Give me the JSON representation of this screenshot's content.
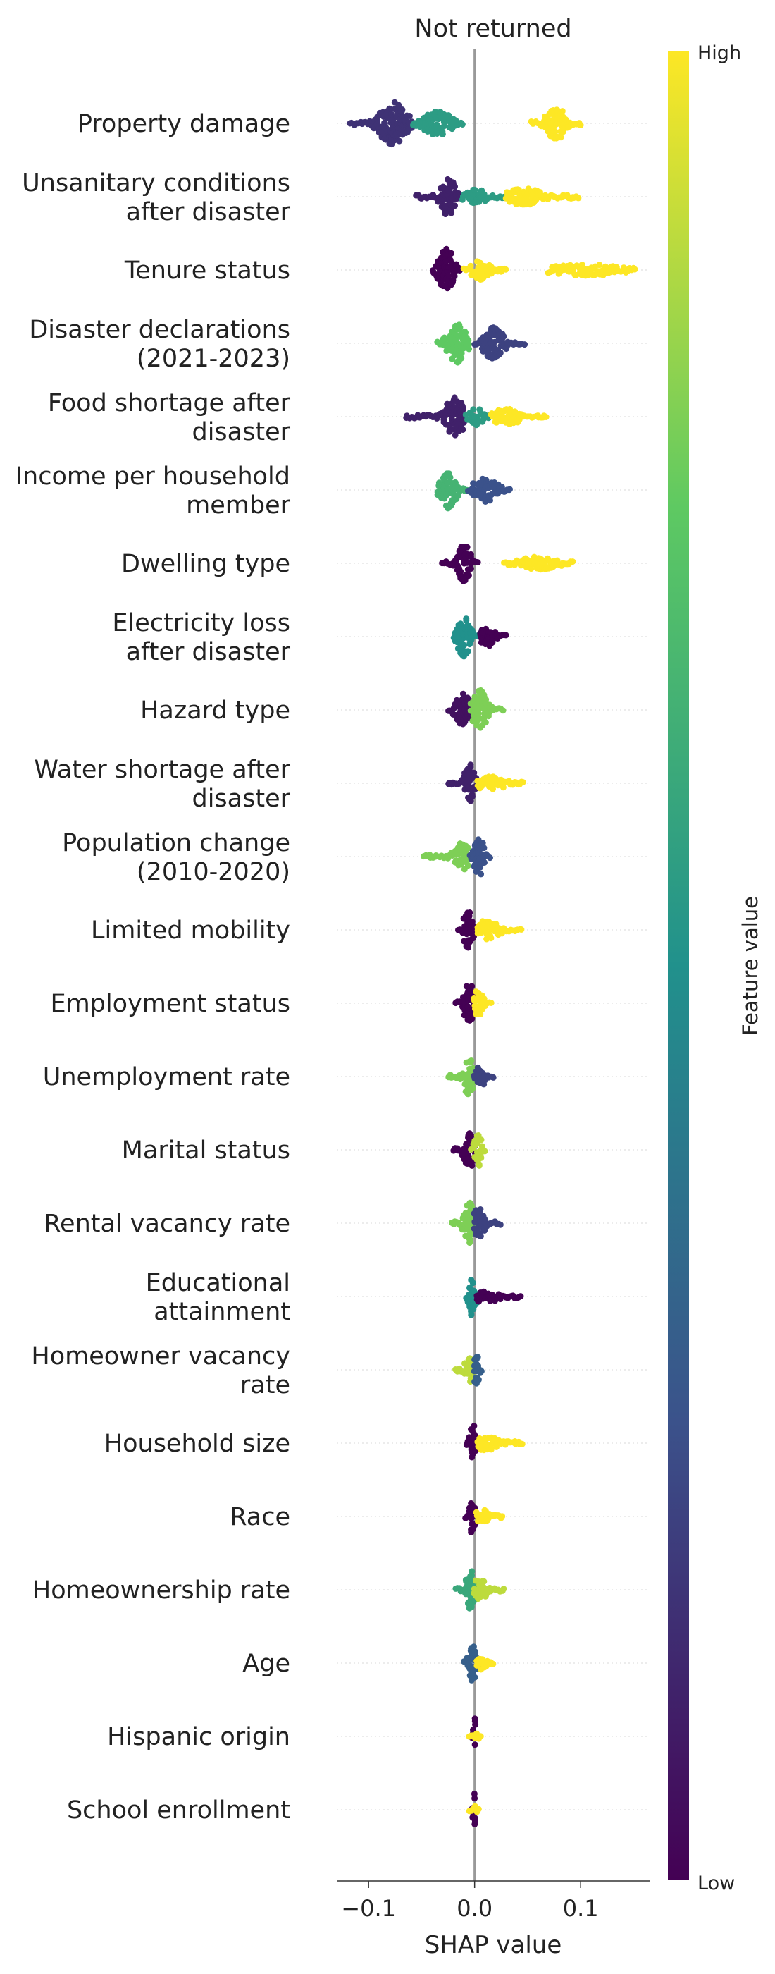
{
  "chart_data": {
    "type": "scatter",
    "subtype": "shap-beeswarm",
    "title": "Not returned",
    "xlabel": "SHAP value",
    "xlim": [
      -0.13,
      0.165
    ],
    "xticks": [
      -0.1,
      0.0,
      0.1
    ],
    "xtick_labels": [
      "−0.1",
      "0.0",
      "0.1"
    ],
    "grid": false,
    "zero_line": true,
    "colorbar": {
      "title": "Feature value",
      "high_label": "High",
      "low_label": "Low",
      "colormap": "viridis",
      "colors": [
        "#440154",
        "#3b528b",
        "#21918c",
        "#5ec962",
        "#fde725"
      ]
    },
    "features": [
      {
        "name": "Property damage",
        "label_lines": [
          "Property damage"
        ],
        "groups": [
          {
            "lo": -0.118,
            "hi": -0.058,
            "color_level": 0.15,
            "peak": -0.077,
            "width": 0.011,
            "height": 0.9
          },
          {
            "lo": -0.058,
            "hi": -0.011,
            "color_level": 0.55,
            "peak": -0.035,
            "width": 0.012,
            "height": 0.5
          },
          {
            "lo": 0.053,
            "hi": 0.101,
            "color_level": 1.0,
            "peak": 0.077,
            "width": 0.008,
            "height": 0.7
          }
        ]
      },
      {
        "name": "Unsanitary conditions after disaster",
        "label_lines": [
          "Unsanitary conditions",
          "after disaster"
        ],
        "groups": [
          {
            "lo": -0.055,
            "hi": -0.012,
            "color_level": 0.1,
            "peak": -0.025,
            "width": 0.006,
            "height": 0.8
          },
          {
            "lo": -0.012,
            "hi": 0.028,
            "color_level": 0.55,
            "peak": 0.0,
            "width": 0.009,
            "height": 0.35
          },
          {
            "lo": 0.03,
            "hi": 0.098,
            "color_level": 1.0,
            "peak": 0.047,
            "width": 0.016,
            "height": 0.35
          }
        ]
      },
      {
        "name": "Tenure status",
        "label_lines": [
          "Tenure status"
        ],
        "groups": [
          {
            "lo": -0.04,
            "hi": -0.014,
            "color_level": 0.0,
            "peak": -0.027,
            "width": 0.006,
            "height": 0.9
          },
          {
            "lo": -0.01,
            "hi": 0.03,
            "color_level": 1.0,
            "peak": 0.005,
            "width": 0.008,
            "height": 0.4
          },
          {
            "lo": 0.07,
            "hi": 0.152,
            "color_level": 1.0,
            "peak": 0.105,
            "width": 0.03,
            "height": 0.25
          }
        ]
      },
      {
        "name": "Disaster declarations (2021-2023)",
        "label_lines": [
          "Disaster declarations",
          "(2021-2023)"
        ],
        "groups": [
          {
            "lo": -0.035,
            "hi": -0.004,
            "color_level": 0.75,
            "peak": -0.016,
            "width": 0.008,
            "height": 0.8
          },
          {
            "lo": 0.0,
            "hi": 0.048,
            "color_level": 0.2,
            "peak": 0.018,
            "width": 0.008,
            "height": 0.7
          }
        ]
      },
      {
        "name": "Food shortage after disaster",
        "label_lines": [
          "Food shortage after",
          "disaster"
        ],
        "groups": [
          {
            "lo": -0.065,
            "hi": -0.008,
            "color_level": 0.1,
            "peak": -0.018,
            "width": 0.008,
            "height": 0.8
          },
          {
            "lo": -0.008,
            "hi": 0.015,
            "color_level": 0.55,
            "peak": 0.002,
            "width": 0.006,
            "height": 0.35
          },
          {
            "lo": 0.016,
            "hi": 0.068,
            "color_level": 1.0,
            "peak": 0.03,
            "width": 0.012,
            "height": 0.35
          }
        ]
      },
      {
        "name": "Income per household member",
        "label_lines": [
          "Income per household",
          "member"
        ],
        "groups": [
          {
            "lo": -0.035,
            "hi": -0.006,
            "color_level": 0.65,
            "peak": -0.025,
            "width": 0.006,
            "height": 0.8
          },
          {
            "lo": -0.006,
            "hi": 0.035,
            "color_level": 0.25,
            "peak": 0.01,
            "width": 0.01,
            "height": 0.5
          }
        ]
      },
      {
        "name": "Dwelling type",
        "label_lines": [
          "Dwelling type"
        ],
        "groups": [
          {
            "lo": -0.03,
            "hi": 0.003,
            "color_level": 0.0,
            "peak": -0.01,
            "width": 0.005,
            "height": 0.8
          },
          {
            "lo": 0.028,
            "hi": 0.092,
            "color_level": 1.0,
            "peak": 0.06,
            "width": 0.015,
            "height": 0.28
          }
        ]
      },
      {
        "name": "Electricity loss after disaster",
        "label_lines": [
          "Electricity loss",
          "after disaster"
        ],
        "groups": [
          {
            "lo": -0.02,
            "hi": 0.005,
            "color_level": 0.5,
            "peak": -0.01,
            "width": 0.005,
            "height": 0.85
          },
          {
            "lo": 0.005,
            "hi": 0.03,
            "color_level": 0.0,
            "peak": 0.012,
            "width": 0.006,
            "height": 0.4
          }
        ]
      },
      {
        "name": "Hazard type",
        "label_lines": [
          "Hazard type"
        ],
        "groups": [
          {
            "lo": -0.025,
            "hi": 0.0,
            "color_level": 0.05,
            "peak": -0.01,
            "width": 0.006,
            "height": 0.8
          },
          {
            "lo": -0.003,
            "hi": 0.028,
            "color_level": 0.8,
            "peak": 0.005,
            "width": 0.006,
            "height": 0.85
          }
        ]
      },
      {
        "name": "Water shortage after disaster",
        "label_lines": [
          "Water shortage after",
          "disaster"
        ],
        "groups": [
          {
            "lo": -0.025,
            "hi": 0.005,
            "color_level": 0.1,
            "peak": -0.005,
            "width": 0.004,
            "height": 0.8
          },
          {
            "lo": 0.003,
            "hi": 0.047,
            "color_level": 1.0,
            "peak": 0.015,
            "width": 0.012,
            "height": 0.3
          }
        ]
      },
      {
        "name": "Population change (2010-2020)",
        "label_lines": [
          "Population change",
          "(2010-2020)"
        ],
        "groups": [
          {
            "lo": -0.048,
            "hi": -0.005,
            "color_level": 0.8,
            "peak": -0.012,
            "width": 0.006,
            "height": 0.6
          },
          {
            "lo": -0.005,
            "hi": 0.015,
            "color_level": 0.25,
            "peak": 0.004,
            "width": 0.004,
            "height": 0.8
          }
        ]
      },
      {
        "name": "Limited mobility",
        "label_lines": [
          "Limited mobility"
        ],
        "groups": [
          {
            "lo": -0.015,
            "hi": 0.003,
            "color_level": 0.0,
            "peak": -0.006,
            "width": 0.004,
            "height": 0.8
          },
          {
            "lo": 0.003,
            "hi": 0.045,
            "color_level": 1.0,
            "peak": 0.012,
            "width": 0.01,
            "height": 0.4
          }
        ]
      },
      {
        "name": "Employment status",
        "label_lines": [
          "Employment status"
        ],
        "groups": [
          {
            "lo": -0.018,
            "hi": 0.002,
            "color_level": 0.0,
            "peak": -0.005,
            "width": 0.004,
            "height": 0.9
          },
          {
            "lo": 0.0,
            "hi": 0.016,
            "color_level": 1.0,
            "peak": 0.004,
            "width": 0.004,
            "height": 0.6
          }
        ]
      },
      {
        "name": "Unemployment rate",
        "label_lines": [
          "Unemployment rate"
        ],
        "groups": [
          {
            "lo": -0.025,
            "hi": 0.003,
            "color_level": 0.8,
            "peak": -0.005,
            "width": 0.004,
            "height": 0.85
          },
          {
            "lo": 0.0,
            "hi": 0.018,
            "color_level": 0.2,
            "peak": 0.005,
            "width": 0.004,
            "height": 0.5
          }
        ]
      },
      {
        "name": "Marital status",
        "label_lines": [
          "Marital status"
        ],
        "groups": [
          {
            "lo": -0.02,
            "hi": 0.003,
            "color_level": 0.0,
            "peak": -0.005,
            "width": 0.004,
            "height": 0.8
          },
          {
            "lo": -0.003,
            "hi": 0.01,
            "color_level": 0.9,
            "peak": 0.003,
            "width": 0.003,
            "height": 0.7
          }
        ]
      },
      {
        "name": "Rental vacancy rate",
        "label_lines": [
          "Rental vacancy rate"
        ],
        "groups": [
          {
            "lo": -0.022,
            "hi": 0.003,
            "color_level": 0.8,
            "peak": -0.005,
            "width": 0.005,
            "height": 0.85
          },
          {
            "lo": 0.0,
            "hi": 0.025,
            "color_level": 0.2,
            "peak": 0.004,
            "width": 0.005,
            "height": 0.6
          }
        ]
      },
      {
        "name": "Educational attainment",
        "label_lines": [
          "Educational",
          "attainment"
        ],
        "groups": [
          {
            "lo": -0.008,
            "hi": 0.003,
            "color_level": 0.5,
            "peak": -0.002,
            "width": 0.003,
            "height": 0.8
          },
          {
            "lo": 0.002,
            "hi": 0.045,
            "color_level": 0.0,
            "peak": 0.01,
            "width": 0.012,
            "height": 0.25
          }
        ]
      },
      {
        "name": "Homeowner vacancy rate",
        "label_lines": [
          "Homeowner vacancy",
          "rate"
        ],
        "groups": [
          {
            "lo": -0.018,
            "hi": 0.0,
            "color_level": 0.9,
            "peak": -0.005,
            "width": 0.004,
            "height": 0.5
          },
          {
            "lo": 0.0,
            "hi": 0.008,
            "color_level": 0.3,
            "peak": 0.002,
            "width": 0.002,
            "height": 0.85
          }
        ]
      },
      {
        "name": "Household size",
        "label_lines": [
          "Household size"
        ],
        "groups": [
          {
            "lo": -0.008,
            "hi": 0.003,
            "color_level": 0.0,
            "peak": -0.002,
            "width": 0.002,
            "height": 0.85
          },
          {
            "lo": 0.003,
            "hi": 0.045,
            "color_level": 1.0,
            "peak": 0.01,
            "width": 0.01,
            "height": 0.3
          }
        ]
      },
      {
        "name": "Race",
        "label_lines": [
          "Race"
        ],
        "groups": [
          {
            "lo": -0.008,
            "hi": 0.002,
            "color_level": 0.0,
            "peak": -0.002,
            "width": 0.002,
            "height": 0.85
          },
          {
            "lo": 0.002,
            "hi": 0.027,
            "color_level": 1.0,
            "peak": 0.008,
            "width": 0.006,
            "height": 0.3
          }
        ]
      },
      {
        "name": "Homeownership rate",
        "label_lines": [
          "Homeownership rate"
        ],
        "groups": [
          {
            "lo": -0.018,
            "hi": 0.004,
            "color_level": 0.6,
            "peak": -0.003,
            "width": 0.004,
            "height": 0.85
          },
          {
            "lo": 0.0,
            "hi": 0.028,
            "color_level": 0.9,
            "peak": 0.005,
            "width": 0.005,
            "height": 0.5
          }
        ]
      },
      {
        "name": "Age",
        "label_lines": [
          "Age"
        ],
        "groups": [
          {
            "lo": -0.01,
            "hi": 0.004,
            "color_level": 0.3,
            "peak": -0.002,
            "width": 0.003,
            "height": 0.85
          },
          {
            "lo": 0.002,
            "hi": 0.018,
            "color_level": 1.0,
            "peak": 0.006,
            "width": 0.004,
            "height": 0.3
          }
        ]
      },
      {
        "name": "Hispanic origin",
        "label_lines": [
          "Hispanic origin"
        ],
        "groups": [
          {
            "lo": -0.003,
            "hi": 0.002,
            "color_level": 0.0,
            "peak": 0.0,
            "width": 0.001,
            "height": 0.85
          },
          {
            "lo": -0.005,
            "hi": 0.007,
            "color_level": 1.0,
            "peak": 0.002,
            "width": 0.002,
            "height": 0.15
          }
        ]
      },
      {
        "name": "School enrollment",
        "label_lines": [
          "School enrollment"
        ],
        "groups": [
          {
            "lo": -0.003,
            "hi": 0.002,
            "color_level": 0.0,
            "peak": 0.0,
            "width": 0.001,
            "height": 0.85
          },
          {
            "lo": -0.005,
            "hi": 0.004,
            "color_level": 1.0,
            "peak": 0.0,
            "width": 0.002,
            "height": 0.15
          }
        ]
      }
    ]
  }
}
